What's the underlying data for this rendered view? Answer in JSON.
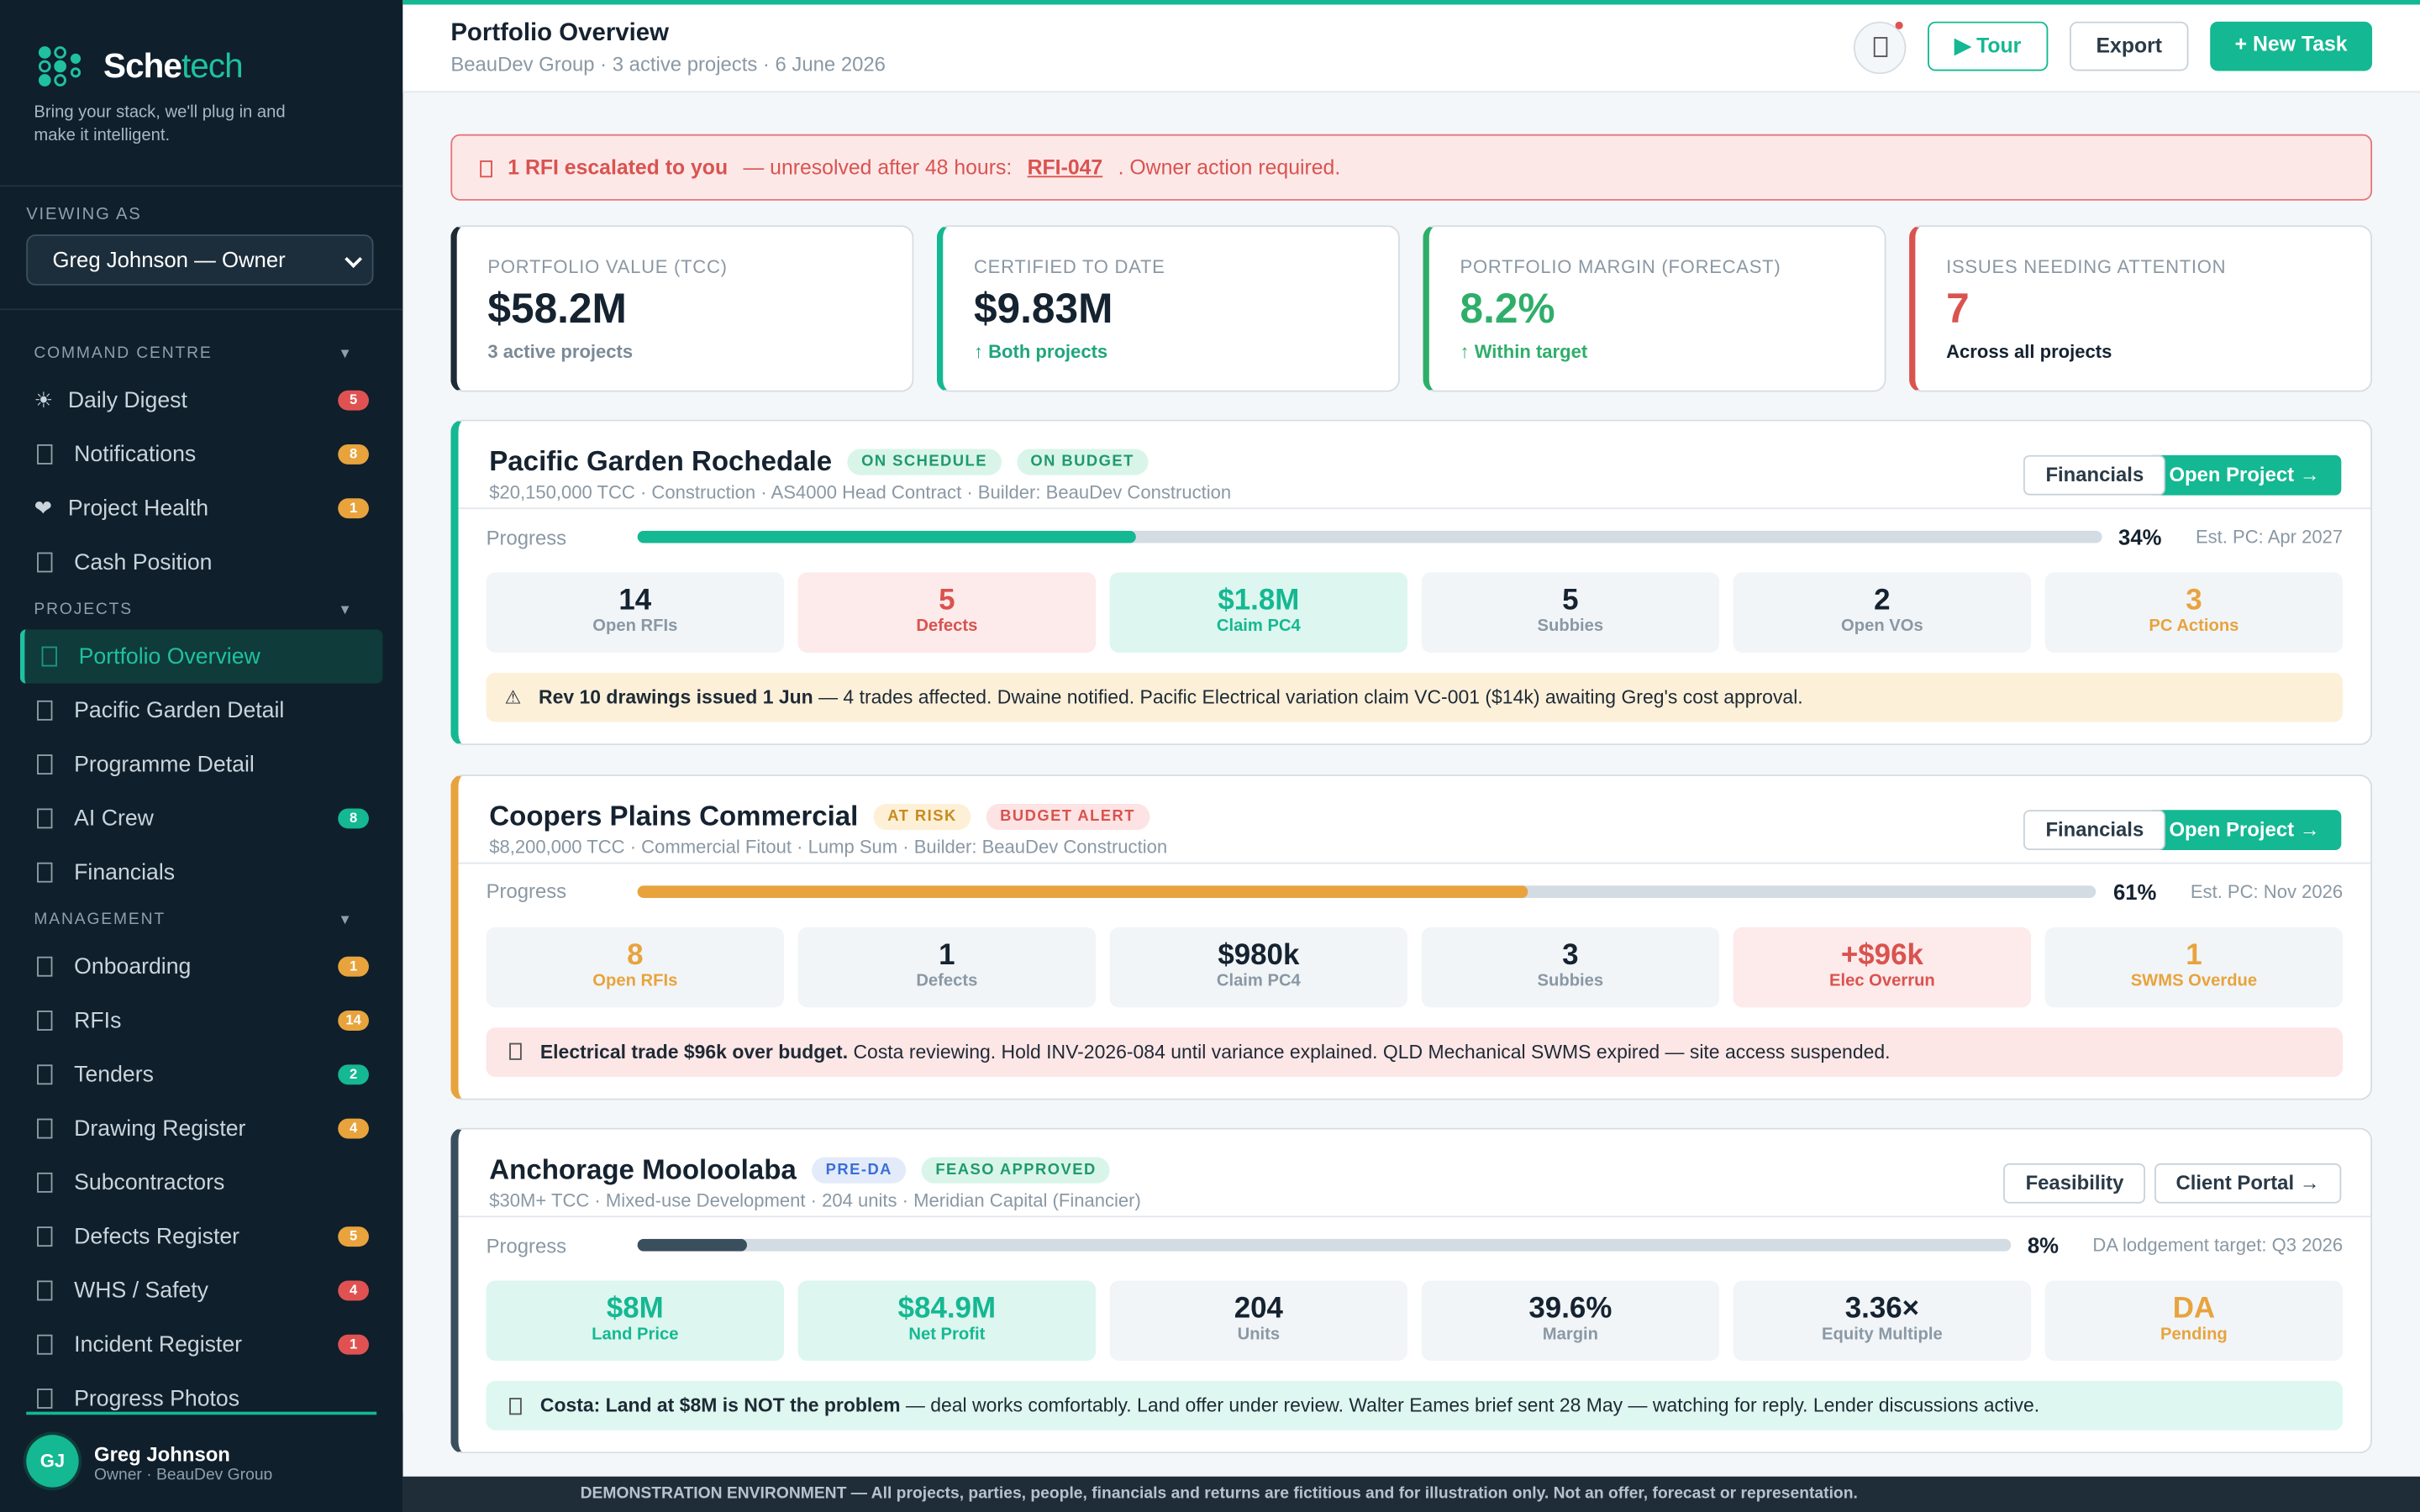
{
  "sidebar": {
    "brand_a": "Sche",
    "brand_b": "tech",
    "tagline": "Bring your stack, we'll plug in and make it intelligent.",
    "viewing_as_label": "VIEWING AS",
    "viewing_as_value": "Greg Johnson — Owner",
    "sections": [
      {
        "title": "COMMAND CENTRE",
        "items": [
          {
            "label": "Daily Digest",
            "icon": "☀",
            "badge": 5,
            "badge_color": "#e05252"
          },
          {
            "label": "Notifications",
            "badge": 8,
            "badge_color": "#e8a33d"
          },
          {
            "label": "Project Health",
            "icon": "❤",
            "badge": 1,
            "badge_color": "#e8a33d"
          },
          {
            "label": "Cash Position"
          }
        ]
      },
      {
        "title": "PROJECTS",
        "items": [
          {
            "label": "Portfolio Overview",
            "active": true
          },
          {
            "label": "Pacific Garden Detail"
          },
          {
            "label": "Programme Detail"
          },
          {
            "label": "AI Crew",
            "badge": 8,
            "badge_color": "#14b892"
          },
          {
            "label": "Financials"
          }
        ]
      },
      {
        "title": "MANAGEMENT",
        "items": [
          {
            "label": "Onboarding",
            "badge": 1,
            "badge_color": "#e8a33d"
          },
          {
            "label": "RFIs",
            "badge": 14,
            "badge_color": "#e8a33d"
          },
          {
            "label": "Tenders",
            "badge": 2,
            "badge_color": "#14b892"
          },
          {
            "label": "Drawing Register",
            "badge": 4,
            "badge_color": "#e8a33d"
          },
          {
            "label": "Subcontractors"
          },
          {
            "label": "Defects Register",
            "badge": 5,
            "badge_color": "#e8a33d"
          },
          {
            "label": "WHS / Safety",
            "badge": 4,
            "badge_color": "#e05252"
          },
          {
            "label": "Incident Register",
            "badge": 1,
            "badge_color": "#e05252"
          },
          {
            "label": "Progress Photos"
          }
        ]
      }
    ],
    "user": {
      "initials": "GJ",
      "name": "Greg Johnson",
      "role": "Owner · BeauDev Group"
    }
  },
  "header": {
    "title": "Portfolio Overview",
    "subtitle": "BeauDev Group · 3 active projects · 6 June 2026",
    "buttons": [
      "▶ Tour",
      "Export",
      "+ New Task"
    ]
  },
  "alert": {
    "strong": "1 RFI escalated to you",
    "text": "— unresolved after 48 hours:",
    "link": "RFI-047",
    "tail": ". Owner action required."
  },
  "kpis": [
    {
      "label": "PORTFOLIO VALUE (TCC)",
      "value": "$58.2M",
      "sub": "3 active projects",
      "accent": "#1e2a35",
      "value_color": "#152230",
      "sub_color": "#7b8a96"
    },
    {
      "label": "CERTIFIED TO DATE",
      "value": "$9.83M",
      "sub": "↑ Both projects",
      "accent": "#14b892",
      "value_color": "#152230",
      "sub_color": "#1fa57c"
    },
    {
      "label": "PORTFOLIO MARGIN (FORECAST)",
      "value": "8.2%",
      "sub": "↑ Within target",
      "accent": "#2fae6a",
      "value_color": "#2fae6a",
      "sub_color": "#2fae6a"
    },
    {
      "label": "ISSUES NEEDING ATTENTION",
      "value": "7",
      "sub": "Across all projects",
      "accent": "#d9534f",
      "value_color": "#d9534f",
      "sub_color": "#152230"
    }
  ],
  "progress_caption": "Progress",
  "projects": [
    {
      "name": "Pacific Garden Rochedale",
      "accent": "#14b892",
      "tags": [
        {
          "text": "ON SCHEDULE",
          "bg": "#d9f5ea",
          "fg": "#1f9a6c"
        },
        {
          "text": "ON BUDGET",
          "bg": "#d9f5ea",
          "fg": "#1f9a6c"
        }
      ],
      "meta": "$20,150,000 TCC · Construction · AS4000 Head Contract · Builder: BeauDev Construction",
      "buttons": [
        "Financials",
        "Open Project →"
      ],
      "progress": 34,
      "progress_label": "34%",
      "est": "Est. PC: Apr 2027",
      "stats": [
        {
          "value": "14",
          "label": "Open RFIs",
          "tone": "default"
        },
        {
          "value": "5",
          "label": "Defects",
          "tone": "danger"
        },
        {
          "value": "$1.8M",
          "label": "Claim PC4",
          "tone": "good"
        },
        {
          "value": "5",
          "label": "Subbies",
          "tone": "default"
        },
        {
          "value": "2",
          "label": "Open VOs",
          "tone": "default"
        },
        {
          "value": "3",
          "label": "PC Actions",
          "tone": "warn"
        }
      ],
      "note": {
        "icon": "⚠",
        "bold": "Rev 10 drawings issued 1 Jun",
        "text": " — 4 trades affected. Dwaine notified. Pacific Electrical variation claim VC-001 ($14k) awaiting Greg's cost approval.",
        "bg": "#fdf0d9"
      }
    },
    {
      "name": "Coopers Plains Commercial",
      "accent": "#e8a33d",
      "tags": [
        {
          "text": "AT RISK",
          "bg": "#fdf0d6",
          "fg": "#c88a1e"
        },
        {
          "text": "BUDGET ALERT",
          "bg": "#fde3e3",
          "fg": "#d9534f"
        }
      ],
      "meta": "$8,200,000 TCC · Commercial Fitout · Lump Sum · Builder: BeauDev Construction",
      "buttons": [
        "Financials",
        "Open Project →"
      ],
      "progress": 61,
      "progress_label": "61%",
      "est": "Est. PC: Nov 2026",
      "stats": [
        {
          "value": "8",
          "label": "Open RFIs",
          "tone": "warn"
        },
        {
          "value": "1",
          "label": "Defects",
          "tone": "default"
        },
        {
          "value": "$980k",
          "label": "Claim PC4",
          "tone": "default"
        },
        {
          "value": "3",
          "label": "Subbies",
          "tone": "default"
        },
        {
          "value": "+$96k",
          "label": "Elec Overrun",
          "tone": "danger"
        },
        {
          "value": "1",
          "label": "SWMS Overdue",
          "tone": "warn"
        }
      ],
      "note": {
        "bold": "Electrical trade $96k over budget.",
        "text": " Costa reviewing. Hold INV-2026-084 until variance explained. QLD Mechanical SWMS expired — site access suspended.",
        "bg": "#fde6e6"
      }
    },
    {
      "name": "Anchorage Mooloolaba",
      "accent": "#3a4f5e",
      "tags": [
        {
          "text": "PRE-DA",
          "bg": "#e3ebfb",
          "fg": "#3b6fd6"
        },
        {
          "text": "FEASO APPROVED",
          "bg": "#d9f5ea",
          "fg": "#1f9a6c"
        }
      ],
      "meta": "$30M+ TCC · Mixed-use Development · 204 units · Meridian Capital (Financier)",
      "buttons": [
        "Feasibility",
        "Client Portal →"
      ],
      "progress": 8,
      "progress_label": "8%",
      "est": "DA lodgement target: Q3 2026",
      "stats": [
        {
          "value": "$8M",
          "label": "Land Price",
          "tone": "good"
        },
        {
          "value": "$84.9M",
          "label": "Net Profit",
          "tone": "good"
        },
        {
          "value": "204",
          "label": "Units",
          "tone": "default"
        },
        {
          "value": "39.6%",
          "label": "Margin",
          "tone": "default"
        },
        {
          "value": "3.36×",
          "label": "Equity Multiple",
          "tone": "default"
        },
        {
          "value": "DA",
          "label": "Pending",
          "tone": "warn"
        }
      ],
      "note": {
        "bold": "Costa: Land at $8M is NOT the problem",
        "text": " — deal works comfortably. Land offer under review. Walter Eames brief sent 28 May — watching for reply. Lender discussions active.",
        "bg": "#def7f0"
      }
    }
  ],
  "footer": "DEMONSTRATION ENVIRONMENT — All projects, parties, people, financials and returns are fictitious and for illustration only. Not an offer, forecast or representation."
}
